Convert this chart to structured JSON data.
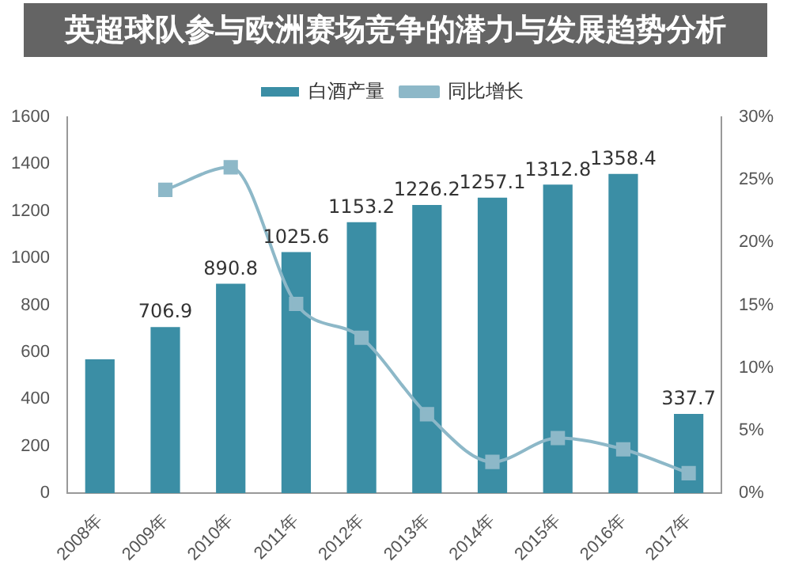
{
  "chart_data": {
    "type": "bar",
    "title": "英超球队参与欧洲赛场竞争的潜力与发展趋势分析",
    "categories": [
      "2008年",
      "2009年",
      "2010年",
      "2011年",
      "2012年",
      "2013年",
      "2014年",
      "2015年",
      "2016年",
      "2017年"
    ],
    "series": [
      {
        "name": "白酒产量",
        "color": "#3b8ea5",
        "values": [
          570,
          706.9,
          890.8,
          1025.6,
          1153.2,
          1226.2,
          1257.1,
          1312.8,
          1358.4,
          337.7
        ],
        "value_labels": [
          null,
          "706.9",
          "890.8",
          "1025.6",
          "1153.2",
          "1226.2",
          "1257.1",
          "1312.8",
          "1358.4",
          "337.7"
        ]
      },
      {
        "name": "同比增长",
        "type": "line",
        "axis": "y2",
        "color": "#8db8c8",
        "marker": "square",
        "values": [
          null,
          24.2,
          26.0,
          15.1,
          12.4,
          6.3,
          2.5,
          4.4,
          3.5,
          1.6
        ]
      }
    ],
    "ylim": [
      0,
      1600
    ],
    "yticks": [
      0,
      200,
      400,
      600,
      800,
      1000,
      1200,
      1400,
      1600
    ],
    "y2lim": [
      0,
      30
    ],
    "y2ticks": [
      {
        "value": 0,
        "label": "0%"
      },
      {
        "value": 5,
        "label": "5%"
      },
      {
        "value": 10,
        "label": "10%"
      },
      {
        "value": 15,
        "label": "15%"
      },
      {
        "value": 20,
        "label": "20%"
      },
      {
        "value": 25,
        "label": "25%"
      },
      {
        "value": 30,
        "label": "30%"
      }
    ],
    "grid": false,
    "legend": "top"
  }
}
